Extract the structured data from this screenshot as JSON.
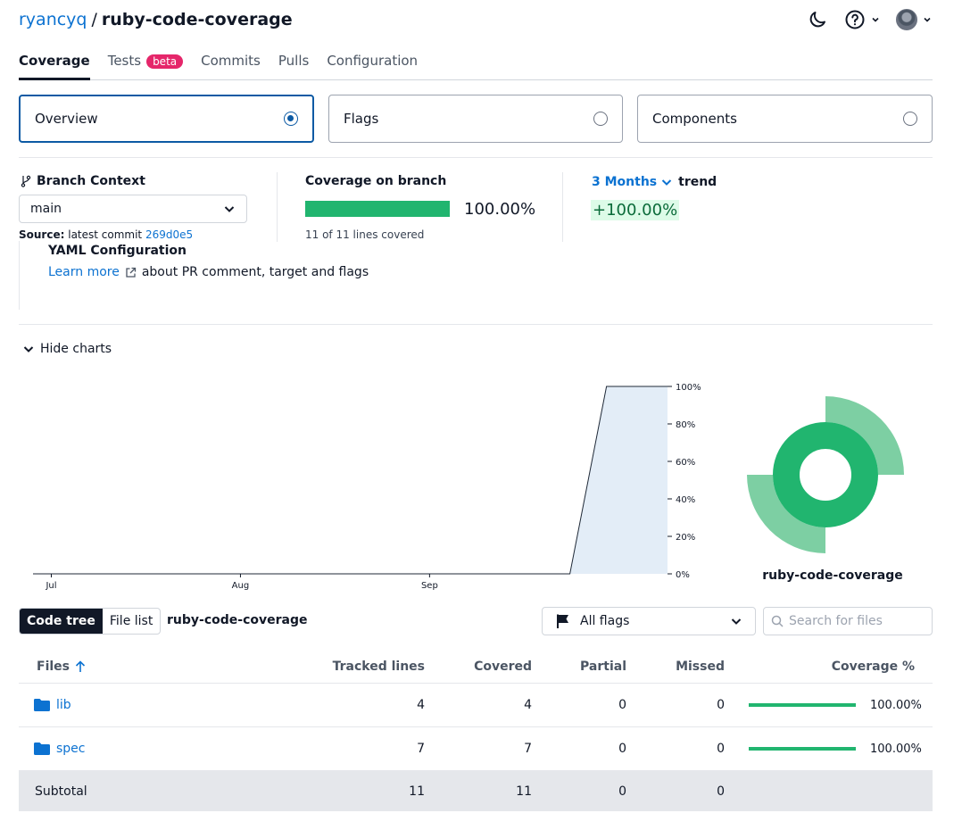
{
  "header": {
    "owner": "ryancyq",
    "separator": "/",
    "repo": "ruby-code-coverage"
  },
  "tabs": [
    {
      "label": "Coverage",
      "active": true
    },
    {
      "label": "Tests",
      "badge": "beta"
    },
    {
      "label": "Commits"
    },
    {
      "label": "Pulls"
    },
    {
      "label": "Configuration"
    }
  ],
  "cards": {
    "overview": "Overview",
    "flags": "Flags",
    "components": "Components"
  },
  "branch": {
    "label": "Branch Context",
    "selected": "main",
    "source_label": "Source:",
    "source_text": "latest commit",
    "commit": "269d0e5"
  },
  "coverage": {
    "label": "Coverage on branch",
    "percent": "100.00%",
    "fraction": 1.0,
    "lines_text": "11 of 11 lines covered"
  },
  "trend": {
    "period": "3 Months",
    "label": "trend",
    "value": "+100.00%"
  },
  "yaml": {
    "title": "YAML Configuration",
    "learn_more": "Learn more",
    "description": "about PR comment, target and flags"
  },
  "charts_toggle": "Hide charts",
  "chart_data": {
    "type": "area",
    "x_tick_labels": [
      "Jul",
      "Aug",
      "Sep"
    ],
    "y_tick_labels": [
      "100%",
      "80%",
      "60%",
      "40%",
      "20%",
      "0%"
    ],
    "ylim": [
      0,
      100
    ],
    "series": [
      {
        "points": [
          [
            "Jun 28",
            0
          ],
          [
            "Sep 24",
            0
          ],
          [
            "Sep 30",
            100
          ],
          [
            "Oct 10",
            100
          ]
        ]
      }
    ],
    "grid": false
  },
  "sunburst": {
    "label": "ruby-code-coverage",
    "inner_color": "#21b56f",
    "outer_color": "#7dcfa3"
  },
  "toolbar": {
    "code_tree": "Code tree",
    "file_list": "File list",
    "current_path": "ruby-code-coverage",
    "flags_select": "All flags",
    "search_placeholder": "Search for files"
  },
  "table": {
    "headers": [
      "Files",
      "Tracked lines",
      "Covered",
      "Partial",
      "Missed",
      "Coverage %"
    ],
    "rows": [
      {
        "name": "lib",
        "tracked": "4",
        "covered": "4",
        "partial": "0",
        "missed": "0",
        "coverage": "100.00%",
        "fraction": 1.0
      },
      {
        "name": "spec",
        "tracked": "7",
        "covered": "7",
        "partial": "0",
        "missed": "0",
        "coverage": "100.00%",
        "fraction": 1.0
      }
    ],
    "subtotal": {
      "label": "Subtotal",
      "tracked": "11",
      "covered": "11",
      "partial": "0",
      "missed": "0"
    }
  },
  "colors": {
    "accent": "#0c72d1",
    "coverage_green": "#21b56f",
    "beta_badge": "#e5266a"
  }
}
